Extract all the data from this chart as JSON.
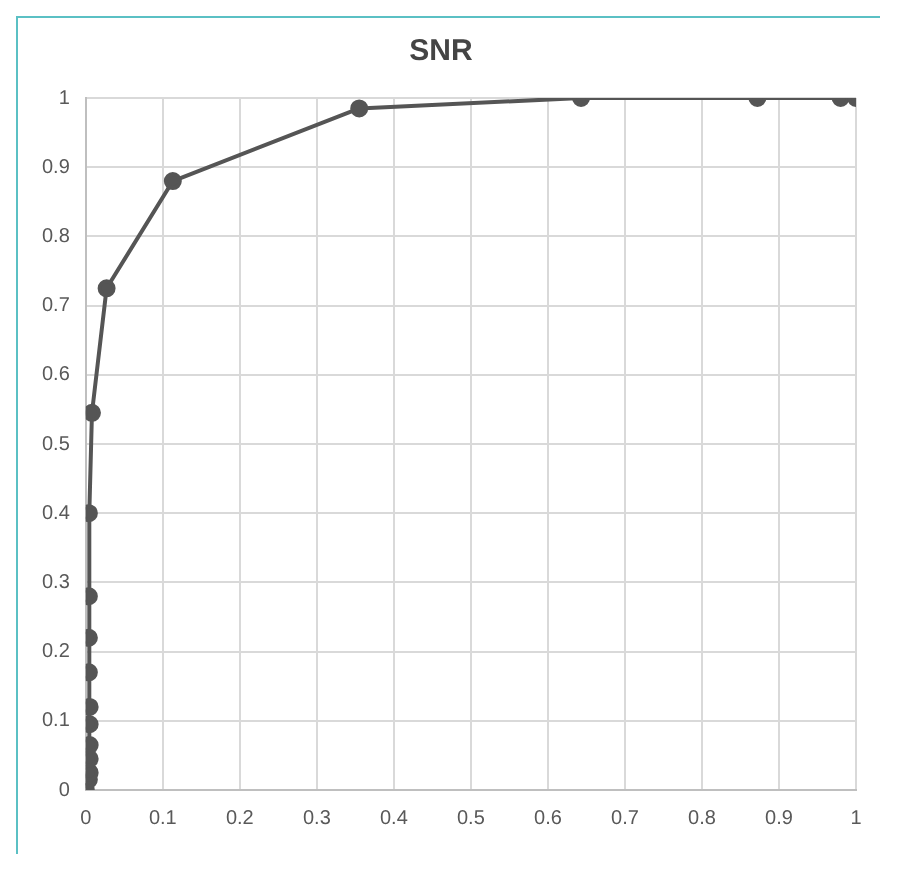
{
  "chart_data": {
    "type": "line",
    "title": "SNR",
    "series": [
      {
        "color": "#555555",
        "x": [
          0,
          0.004,
          0.005,
          0.005,
          0.005,
          0.005,
          0.005,
          0.004,
          0.004,
          0.004,
          0.004,
          0.008,
          0.027,
          0.113,
          0.355,
          0.643,
          0.872,
          0.98,
          1
        ],
        "values": [
          0,
          0.015,
          0.025,
          0.045,
          0.065,
          0.095,
          0.12,
          0.17,
          0.22,
          0.28,
          0.4,
          0.545,
          0.725,
          0.88,
          0.985,
          1,
          1,
          1,
          1
        ]
      }
    ],
    "xlim": [
      0,
      1
    ],
    "xticks": [
      0,
      0.1,
      0.2,
      0.3,
      0.4,
      0.5,
      0.6,
      0.7,
      0.8,
      0.9,
      1
    ],
    "ylim": [
      0,
      1
    ],
    "yticks": [
      0,
      0.1,
      0.2,
      0.3,
      0.4,
      0.5,
      0.6,
      0.7,
      0.8,
      0.9,
      1
    ],
    "grid": true,
    "legend": false,
    "marker": "circle",
    "line_style": "solid"
  }
}
